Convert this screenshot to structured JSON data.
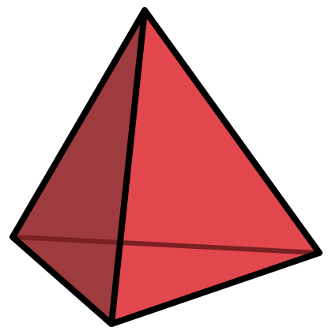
{
  "figure": {
    "subject": "tetrahedron",
    "colors": {
      "background": "#ffffff",
      "left_face": "#9e3b3f",
      "right_face": "#e1474d",
      "bottom_face": "#c43c43",
      "hidden_edge": "#7a1f22",
      "edge": "#000000"
    }
  }
}
